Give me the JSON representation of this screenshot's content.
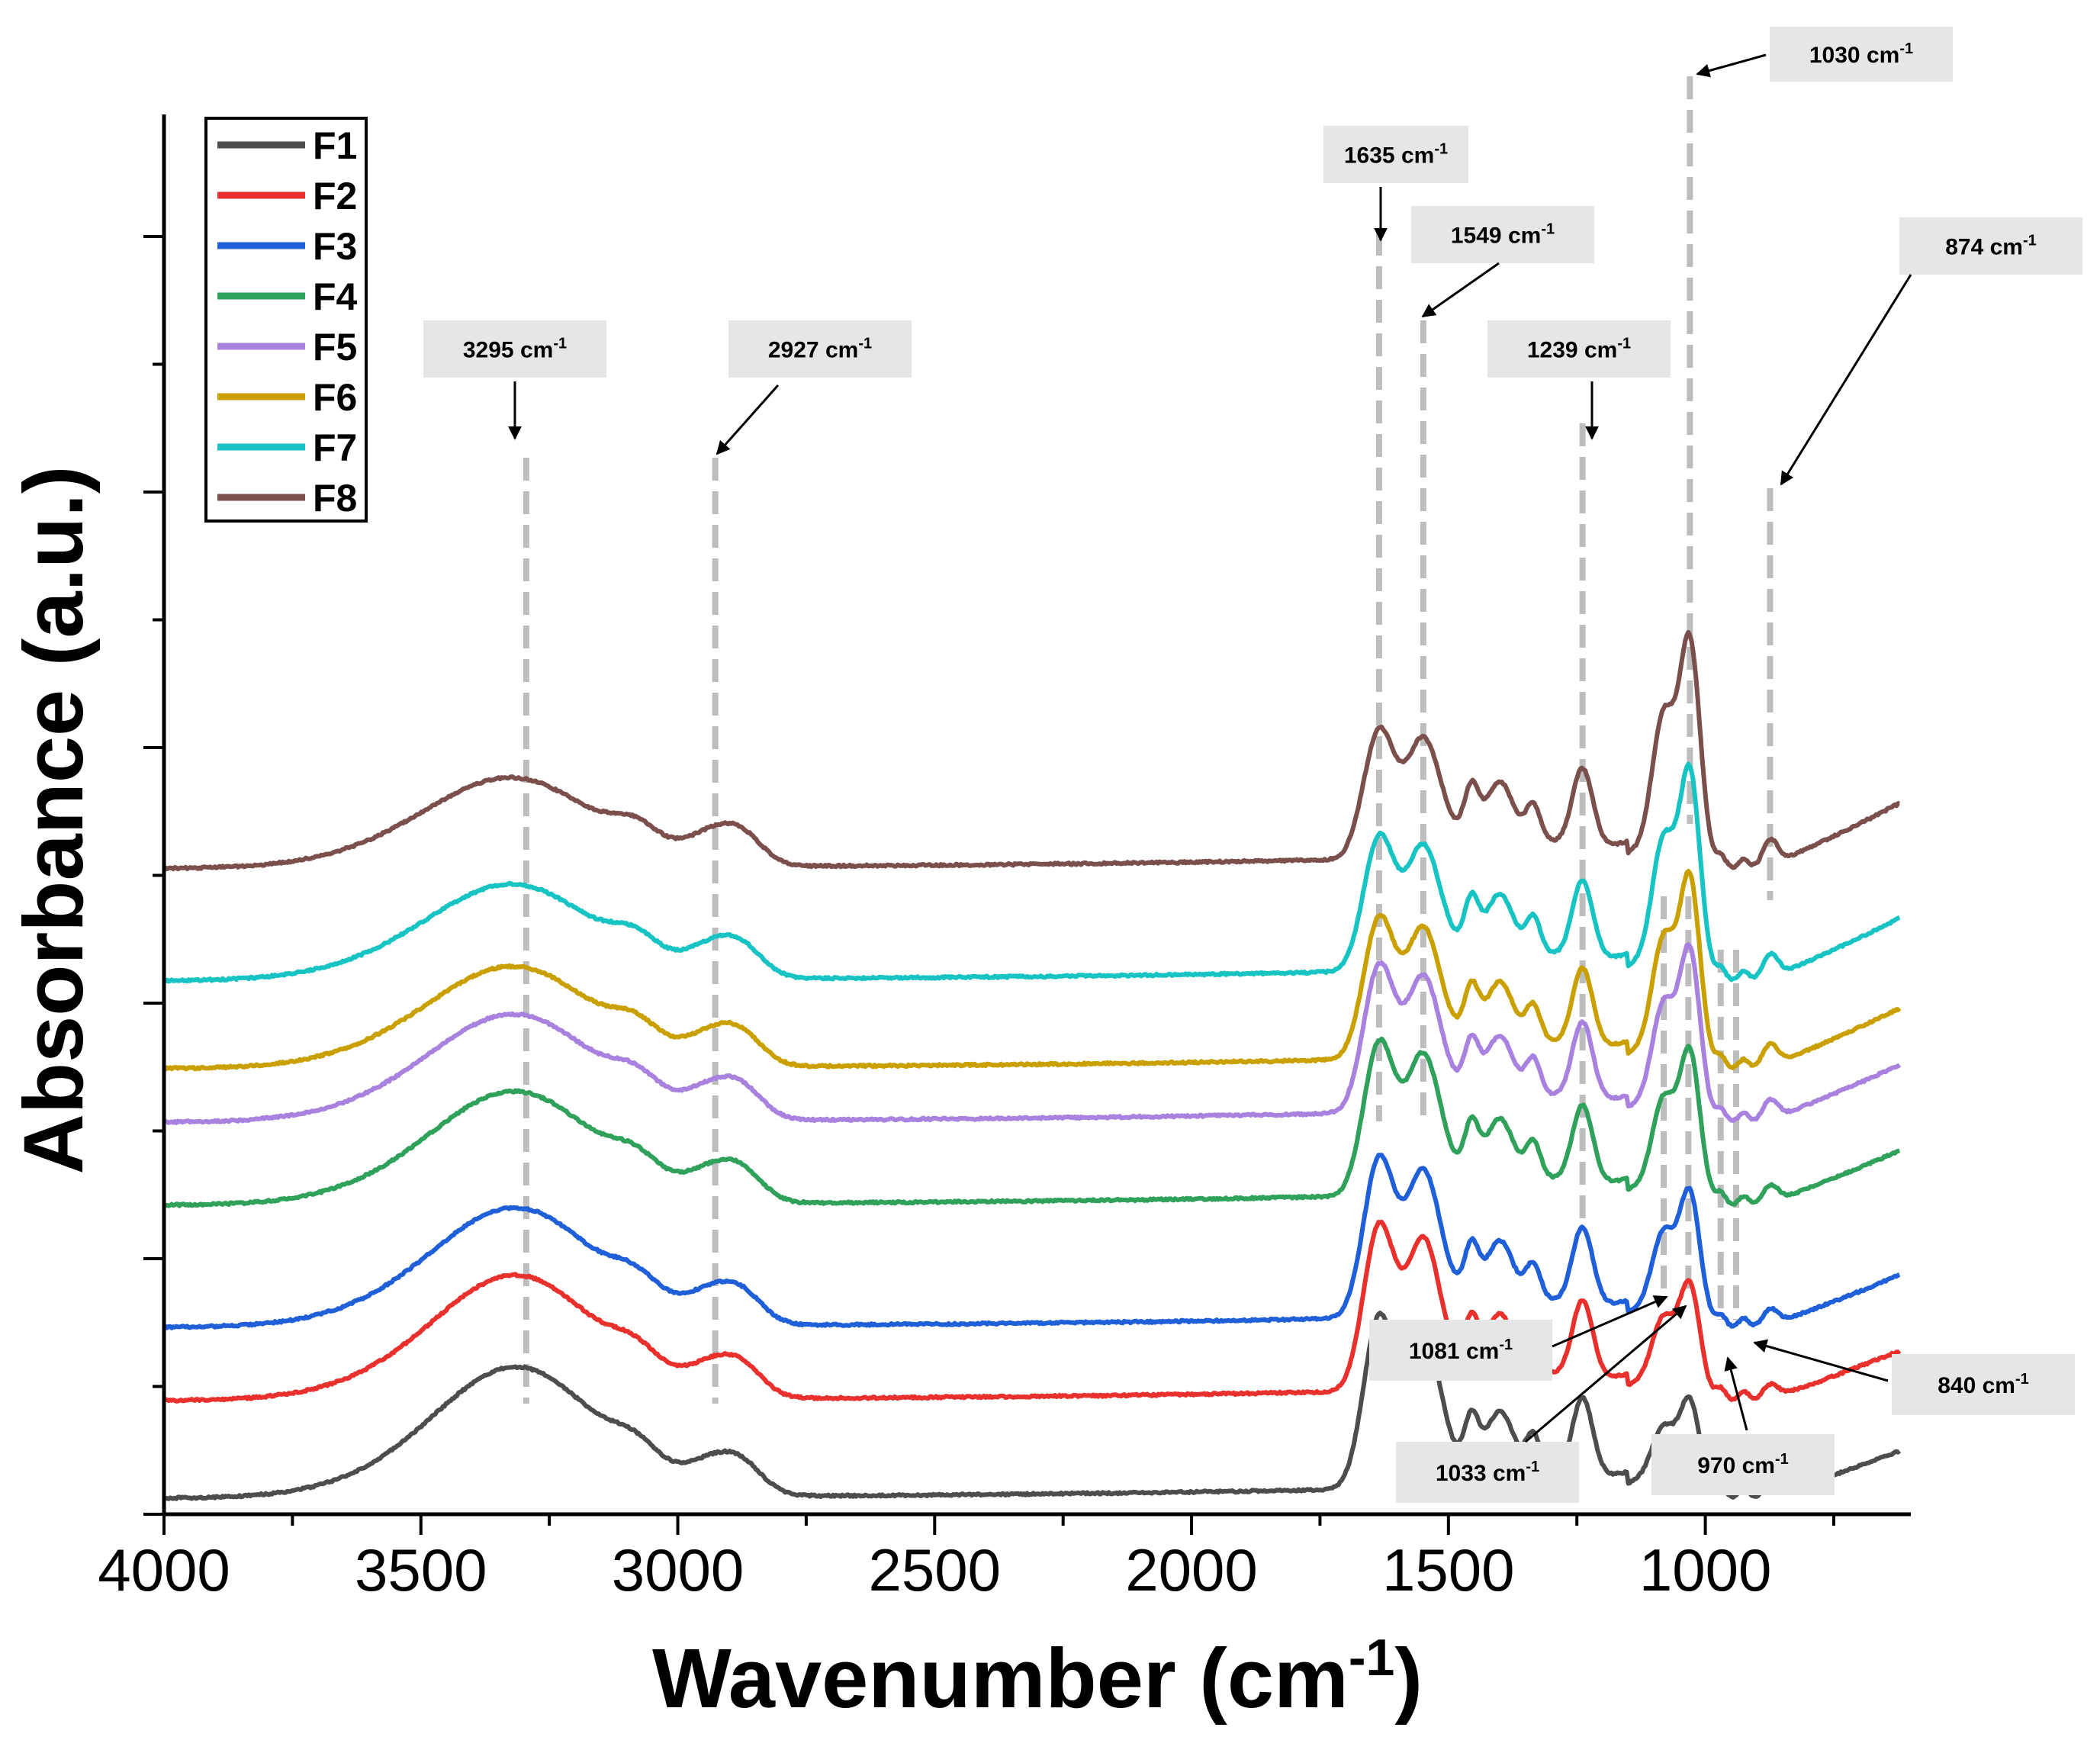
{
  "chart_data": {
    "type": "line",
    "title": "",
    "xlabel": "Wavenumber (cm",
    "xlabel_sup": "-1",
    "xlabel_end": ")",
    "ylabel": "Absorbance (a.u.)",
    "xlim": [
      4000,
      600
    ],
    "x_reversed": true,
    "y_ticklabels": false,
    "xticks": [
      4000,
      3500,
      3000,
      2500,
      2000,
      1500,
      1000
    ],
    "xtick_labels": [
      "4000",
      "3500",
      "3000",
      "2500",
      "2000",
      "1500",
      "1000"
    ],
    "legend_position": "top-left",
    "series": [
      {
        "name": "F1",
        "color": "#4d4d4d",
        "offset": 0.0
      },
      {
        "name": "F2",
        "color": "#e8302c",
        "offset": 1.0
      },
      {
        "name": "F3",
        "color": "#1f5fd8",
        "offset": 1.75
      },
      {
        "name": "F4",
        "color": "#2fa15a",
        "offset": 3.0
      },
      {
        "name": "F5",
        "color": "#a882de",
        "offset": 3.85
      },
      {
        "name": "F6",
        "color": "#c9a000",
        "offset": 4.4
      },
      {
        "name": "F7",
        "color": "#17c3c3",
        "offset": 5.3
      },
      {
        "name": "F8",
        "color": "#7a4f4c",
        "offset": 6.45
      }
    ],
    "peaks_annotated": [
      {
        "position": 3295,
        "label": "3295 cm",
        "sup": "-1"
      },
      {
        "position": 2927,
        "label": "2927 cm",
        "sup": "-1"
      },
      {
        "position": 1635,
        "label": "1635 cm",
        "sup": "-1"
      },
      {
        "position": 1549,
        "label": "1549 cm",
        "sup": "-1"
      },
      {
        "position": 1239,
        "label": "1239 cm",
        "sup": "-1"
      },
      {
        "position": 1030,
        "label": "1030 cm",
        "sup": "-1"
      },
      {
        "position": 874,
        "label": "874 cm",
        "sup": "-1"
      },
      {
        "position": 1081,
        "label": "1081 cm",
        "sup": "-1"
      },
      {
        "position": 1033,
        "label": "1033 cm",
        "sup": "-1"
      },
      {
        "position": 970,
        "label": "970 cm",
        "sup": "-1"
      },
      {
        "position": 840,
        "label": "840 cm",
        "sup": "-1"
      }
    ]
  }
}
